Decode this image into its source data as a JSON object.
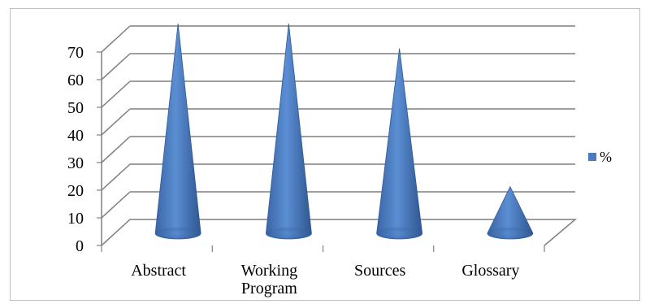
{
  "chart_data": {
    "type": "bar",
    "subtype": "3d-cone",
    "categories": [
      "Abstract",
      "Working Program",
      "Sources",
      "Glossary"
    ],
    "category_lines": [
      [
        "Abstract"
      ],
      [
        "Working",
        "Program"
      ],
      [
        "Sources"
      ],
      [
        "Glossary"
      ]
    ],
    "series": [
      {
        "name": "%",
        "values": [
          70,
          70,
          61,
          11
        ]
      }
    ],
    "ylim": [
      0,
      70
    ],
    "yticks": [
      0,
      10,
      20,
      30,
      40,
      50,
      60,
      70
    ],
    "grid": true,
    "legend_position": "right",
    "colors": {
      "series": "#4a7bc0",
      "grid": "#7f7f7f",
      "border": "#bfbfbf"
    }
  }
}
